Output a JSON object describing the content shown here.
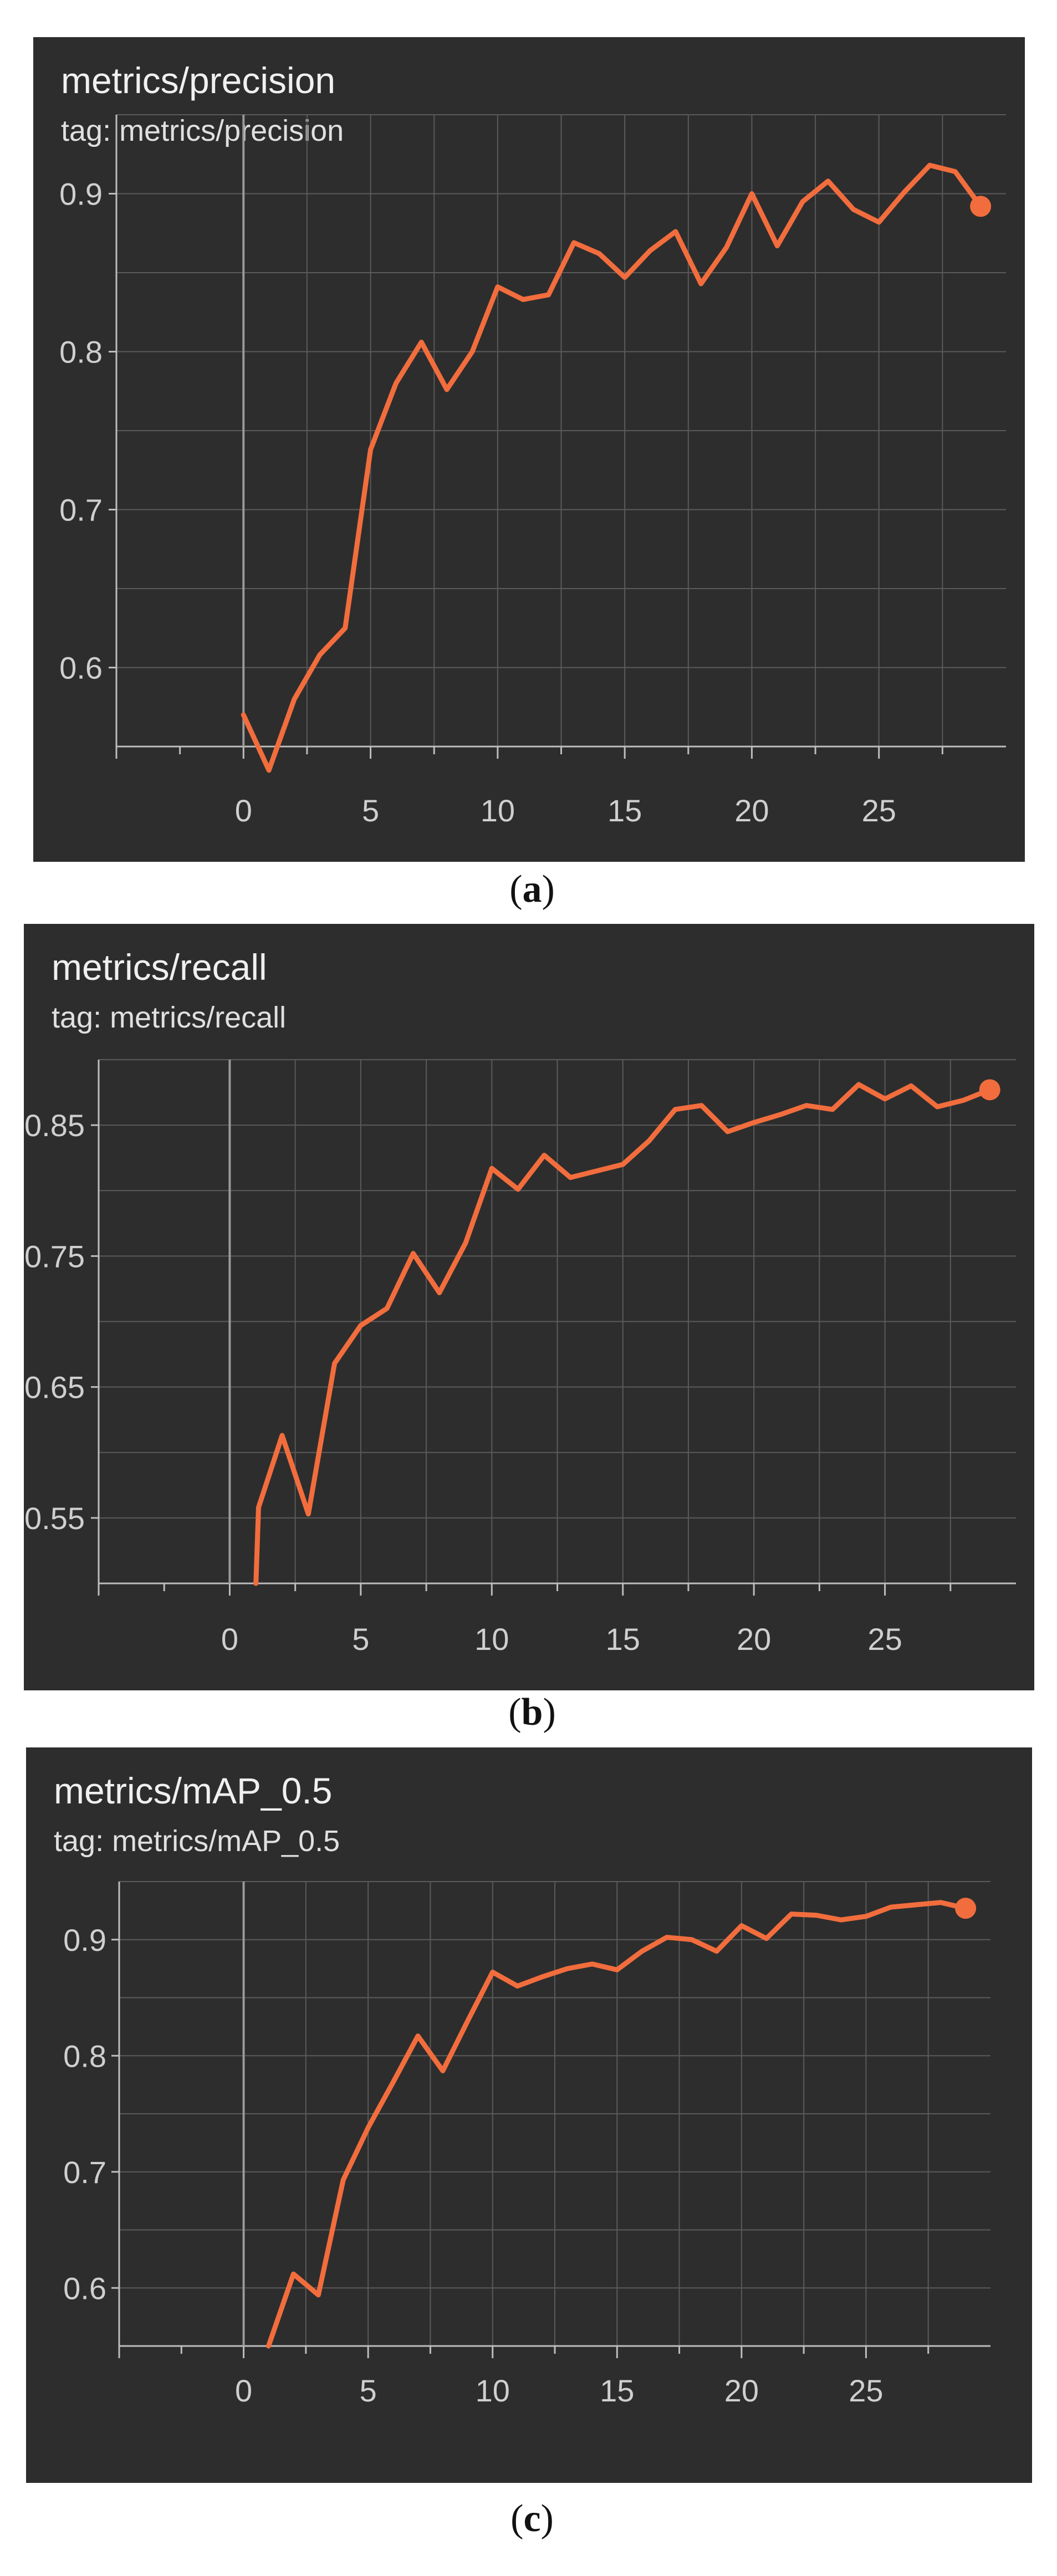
{
  "colors": {
    "panel_background": "#2d2d2d",
    "grid": "#5a5a5a",
    "axis": "#bdbdbd",
    "series": "#f26d3d",
    "text": "#e8e8e8"
  },
  "chart_data": [
    {
      "type": "line",
      "title": "metrics/precision",
      "subtitle": "tag: metrics/precision",
      "caption": "a",
      "xlim": [
        -5,
        30
      ],
      "ylim": [
        0.55,
        0.95
      ],
      "xticks": [
        0,
        5,
        10,
        15,
        20,
        25
      ],
      "yticks": [
        0.6,
        0.7,
        0.8,
        0.9
      ],
      "ytick_labels": [
        "0.6",
        "0.7",
        "0.8",
        "0.9"
      ],
      "grid": true,
      "series": [
        {
          "x": [
            0,
            1,
            2,
            3,
            4,
            5,
            6,
            7,
            8,
            9,
            10,
            11,
            12,
            13,
            14,
            15,
            16,
            17,
            18,
            19,
            20,
            21,
            22,
            23,
            24,
            25,
            26,
            27,
            28,
            29
          ],
          "y": [
            0.57,
            0.535,
            0.58,
            0.608,
            0.625,
            0.738,
            0.78,
            0.806,
            0.776,
            0.8,
            0.841,
            0.833,
            0.836,
            0.869,
            0.862,
            0.847,
            0.864,
            0.876,
            0.843,
            0.866,
            0.9,
            0.867,
            0.895,
            0.908,
            0.89,
            0.882,
            0.901,
            0.918,
            0.914,
            0.892
          ]
        }
      ]
    },
    {
      "type": "line",
      "title": "metrics/recall",
      "subtitle": "tag: metrics/recall",
      "caption": "b",
      "xlim": [
        -5,
        30
      ],
      "ylim": [
        0.5,
        0.9
      ],
      "xticks": [
        0,
        5,
        10,
        15,
        20,
        25
      ],
      "yticks": [
        0.55,
        0.65,
        0.75,
        0.85
      ],
      "ytick_labels": [
        "0.55",
        "0.65",
        "0.75",
        "0.85"
      ],
      "grid": true,
      "series": [
        {
          "x": [
            1,
            1.1,
            2,
            3,
            4,
            5,
            6,
            7,
            8,
            9,
            10,
            11,
            12,
            13,
            14,
            15,
            16,
            17,
            18,
            19,
            20,
            21,
            22,
            23,
            24,
            25,
            26,
            27,
            28,
            29
          ],
          "y": [
            0.5,
            0.558,
            0.613,
            0.553,
            0.668,
            0.697,
            0.71,
            0.752,
            0.722,
            0.76,
            0.817,
            0.801,
            0.827,
            0.81,
            0.815,
            0.82,
            0.838,
            0.862,
            0.865,
            0.845,
            0.852,
            0.858,
            0.865,
            0.862,
            0.881,
            0.87,
            0.88,
            0.864,
            0.869,
            0.877
          ]
        }
      ]
    },
    {
      "type": "line",
      "title": "metrics/mAP_0.5",
      "subtitle": "tag: metrics/mAP_0.5",
      "caption": "c",
      "xlim": [
        -5,
        30
      ],
      "ylim": [
        0.55,
        0.95
      ],
      "xticks": [
        0,
        5,
        10,
        15,
        20,
        25
      ],
      "yticks": [
        0.6,
        0.7,
        0.8,
        0.9
      ],
      "ytick_labels": [
        "0.6",
        "0.7",
        "0.8",
        "0.9"
      ],
      "grid": true,
      "series": [
        {
          "x": [
            1,
            2,
            3,
            4,
            5,
            6,
            7,
            8,
            9,
            10,
            11,
            12,
            13,
            14,
            15,
            16,
            17,
            18,
            19,
            20,
            21,
            22,
            23,
            24,
            25,
            26,
            27,
            28,
            29
          ],
          "y": [
            0.55,
            0.612,
            0.594,
            0.693,
            0.738,
            0.777,
            0.817,
            0.787,
            0.83,
            0.872,
            0.86,
            0.868,
            0.875,
            0.879,
            0.874,
            0.89,
            0.902,
            0.9,
            0.89,
            0.912,
            0.901,
            0.922,
            0.921,
            0.917,
            0.92,
            0.928,
            0.93,
            0.932,
            0.927
          ]
        }
      ]
    }
  ]
}
